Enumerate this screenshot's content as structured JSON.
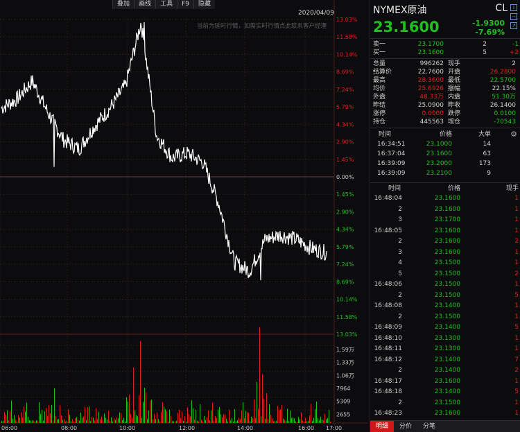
{
  "toolbar": {
    "items": [
      "叠加",
      "画线",
      "工具",
      "F9",
      "隐藏"
    ]
  },
  "chart": {
    "date": "2020/04/09",
    "notice": "当前为延时行情，如需实时行情点此联系客户经理",
    "pct_labels_top": [
      "13.03%",
      "11.58%",
      "10.14%",
      "8.69%",
      "7.24%",
      "5.79%",
      "4.34%",
      "2.90%",
      "1.45%",
      "0.00%"
    ],
    "pct_labels_bottom": [
      "1.45%",
      "2.90%",
      "4.34%",
      "5.79%",
      "7.24%",
      "8.69%",
      "10.14%",
      "11.58%",
      "13.03%"
    ],
    "vol_labels": [
      "1.59万",
      "1.33万",
      "1.06万",
      "7964",
      "5309",
      "2655"
    ],
    "time_labels": [
      "06:00",
      "08:00",
      "10:00",
      "12:00",
      "14:00",
      "16:00",
      "17:00"
    ],
    "colors": {
      "up": "#e02020",
      "down": "#20c020",
      "line": "#ffffff",
      "grid": "#3a1a1a"
    }
  },
  "chart_data": {
    "type": "line",
    "title": "",
    "xlabel": "",
    "ylabel": "",
    "x": [
      "06:00",
      "06:30",
      "07:00",
      "07:30",
      "08:00",
      "08:30",
      "09:00",
      "09:30",
      "10:00",
      "10:30",
      "11:00",
      "11:30",
      "12:00",
      "12:30",
      "13:00",
      "13:30",
      "14:00",
      "14:30",
      "15:00",
      "15:30",
      "16:00",
      "16:30"
    ],
    "values": [
      26.4,
      26.6,
      27.0,
      26.3,
      25.7,
      25.5,
      26.0,
      26.4,
      26.9,
      28.3,
      25.8,
      25.3,
      25.4,
      25.2,
      24.3,
      23.0,
      22.8,
      23.5,
      23.6,
      23.5,
      23.3,
      23.2
    ],
    "reference": 25.09,
    "ylim": [
      21.82,
      28.36
    ]
  },
  "quote": {
    "name": "NYMEX原油",
    "code": "CL",
    "last": "23.1600",
    "change": "-1.9300",
    "change_pct": "-7.69%",
    "ask_label": "卖一",
    "ask_price": "23.1700",
    "ask_vol": "2",
    "ask_diff": "-1",
    "bid_label": "买一",
    "bid_price": "23.1600",
    "bid_vol": "5",
    "bid_diff": "+2",
    "stats": [
      {
        "l1": "总量",
        "v1": "996262",
        "c1": "w",
        "l2": "现手",
        "v2": "2",
        "c2": "w"
      },
      {
        "l1": "结算价",
        "v1": "22.7600",
        "c1": "w",
        "l2": "开盘",
        "v2": "26.2800",
        "c2": "r"
      },
      {
        "l1": "最高",
        "v1": "28.3600",
        "c1": "r",
        "l2": "最低",
        "v2": "22.5700",
        "c2": "g"
      },
      {
        "l1": "均价",
        "v1": "25.6926",
        "c1": "r",
        "l2": "振幅",
        "v2": "22.15%",
        "c2": "w"
      },
      {
        "l1": "外盘",
        "v1": "48.33万",
        "c1": "r",
        "l2": "内盘",
        "v2": "51.30万",
        "c2": "g"
      },
      {
        "l1": "昨结",
        "v1": "25.0900",
        "c1": "w",
        "l2": "昨收",
        "v2": "26.1400",
        "c2": "w"
      },
      {
        "l1": "涨停",
        "v1": "0.0000",
        "c1": "r",
        "l2": "跌停",
        "v2": "0.0100",
        "c2": "g"
      },
      {
        "l1": "持仓",
        "v1": "445563",
        "c1": "w",
        "l2": "增仓",
        "v2": "-70543",
        "c2": "g"
      }
    ]
  },
  "big_orders": {
    "headers": [
      "时间",
      "价格",
      "大单"
    ],
    "rows": [
      {
        "t": "16:34:51",
        "p": "23.1000",
        "v": "14"
      },
      {
        "t": "16:37:04",
        "p": "23.1600",
        "v": "63"
      },
      {
        "t": "16:39:09",
        "p": "23.2000",
        "v": "173"
      },
      {
        "t": "16:39:09",
        "p": "23.2100",
        "v": "9"
      }
    ]
  },
  "ticks": {
    "headers": [
      "时间",
      "价格",
      "现手"
    ],
    "rows": [
      {
        "t": "16:48:04",
        "p": "23.1600",
        "v": "1"
      },
      {
        "t": "2",
        "p": "23.1600",
        "v": "1"
      },
      {
        "t": "3",
        "p": "23.1700",
        "v": "1"
      },
      {
        "t": "16:48:05",
        "p": "23.1600",
        "v": "1"
      },
      {
        "t": "2",
        "p": "23.1600",
        "v": "2"
      },
      {
        "t": "3",
        "p": "23.1600",
        "v": "1"
      },
      {
        "t": "4",
        "p": "23.1500",
        "v": "1"
      },
      {
        "t": "5",
        "p": "23.1500",
        "v": "2"
      },
      {
        "t": "16:48:06",
        "p": "23.1500",
        "v": "1"
      },
      {
        "t": "2",
        "p": "23.1500",
        "v": "5"
      },
      {
        "t": "16:48:08",
        "p": "23.1400",
        "v": "1"
      },
      {
        "t": "2",
        "p": "23.1500",
        "v": "1"
      },
      {
        "t": "16:48:09",
        "p": "23.1400",
        "v": "5"
      },
      {
        "t": "16:48:10",
        "p": "23.1300",
        "v": "1"
      },
      {
        "t": "16:48:11",
        "p": "23.1300",
        "v": "1"
      },
      {
        "t": "16:48:12",
        "p": "23.1400",
        "v": "7"
      },
      {
        "t": "2",
        "p": "23.1400",
        "v": "2"
      },
      {
        "t": "16:48:17",
        "p": "23.1600",
        "v": "1"
      },
      {
        "t": "16:48:18",
        "p": "23.1400",
        "v": "5"
      },
      {
        "t": "2",
        "p": "23.1500",
        "v": "1"
      },
      {
        "t": "16:48:23",
        "p": "23.1600",
        "v": "1"
      }
    ]
  },
  "tabs": [
    "明细",
    "分价",
    "分笔"
  ]
}
